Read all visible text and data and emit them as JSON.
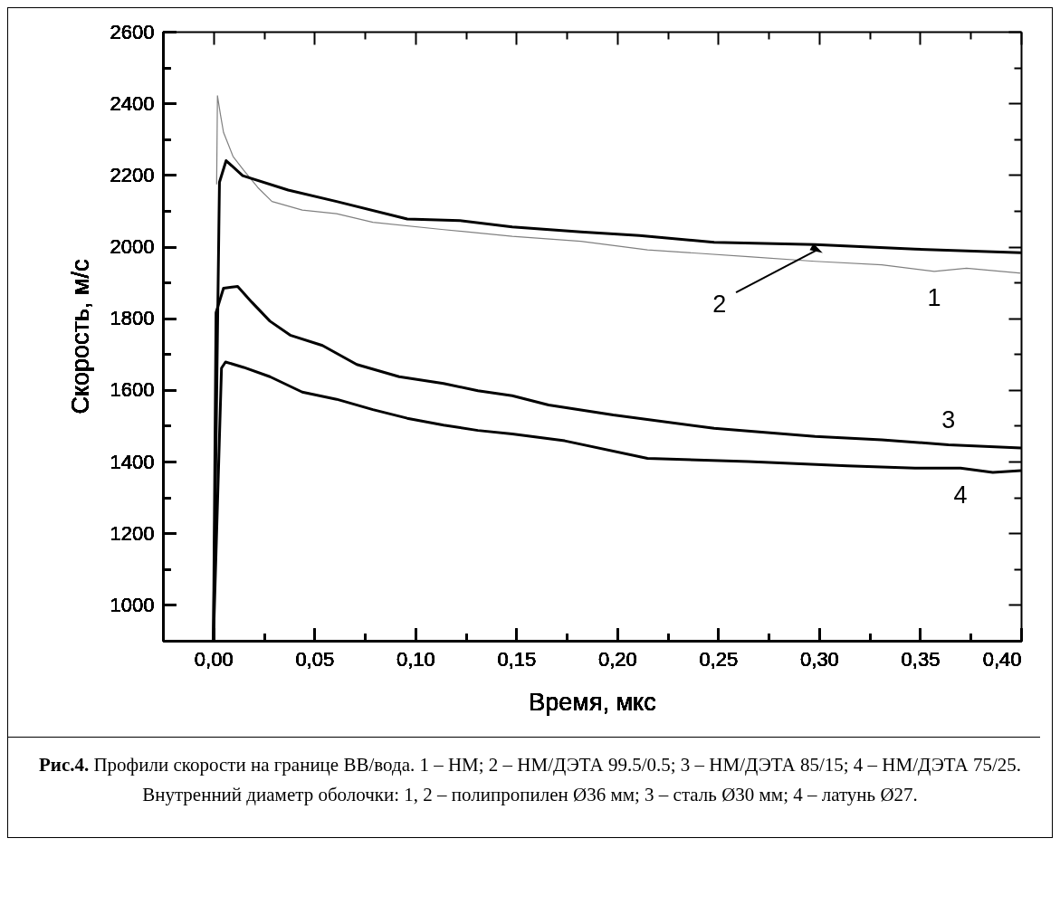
{
  "chart_data": {
    "type": "line",
    "xlabel": "Время, мкс",
    "ylabel": "Скорость, м/с",
    "xlim": [
      -0.025,
      0.4
    ],
    "ylim": [
      900,
      2600
    ],
    "xticks": [
      {
        "value": 0,
        "label": "0,00"
      },
      {
        "value": 0.05,
        "label": "0,05"
      },
      {
        "value": 0.1,
        "label": "0,10"
      },
      {
        "value": 0.15,
        "label": "0,15"
      },
      {
        "value": 0.2,
        "label": "0,20"
      },
      {
        "value": 0.25,
        "label": "0,25"
      },
      {
        "value": 0.3,
        "label": "0,30"
      },
      {
        "value": 0.35,
        "label": "0,35"
      },
      {
        "value": 0.4,
        "label": "0,40"
      },
      {
        "value": 0.025,
        "label": null
      },
      {
        "value": 0.075,
        "label": null
      },
      {
        "value": 0.125,
        "label": null
      },
      {
        "value": 0.175,
        "label": null
      },
      {
        "value": 0.225,
        "label": null
      },
      {
        "value": 0.275,
        "label": null
      },
      {
        "value": 0.325,
        "label": null
      },
      {
        "value": 0.375,
        "label": null
      }
    ],
    "yticks": [
      1000,
      1200,
      1400,
      1600,
      1800,
      2000,
      2200,
      2400,
      2600,
      {
        "value": 1100,
        "label": null
      },
      {
        "value": 1300,
        "label": null
      },
      {
        "value": 1500,
        "label": null
      },
      {
        "value": 1700,
        "label": null
      },
      {
        "value": 1900,
        "label": null
      },
      {
        "value": 2100,
        "label": null
      },
      {
        "value": 2300,
        "label": null
      },
      {
        "value": 2500,
        "label": null
      }
    ],
    "series": [
      {
        "color": "#808080",
        "x": [
          0.0016,
          0.002,
          0.0035,
          0.005,
          0.0097,
          0.015,
          0.022,
          0.029,
          0.044,
          0.061,
          0.079,
          0.113,
          0.148,
          0.182,
          0.215,
          0.265,
          0.298,
          0.331,
          0.357,
          0.373,
          0.4
        ],
        "values": [
          2174,
          2421,
          2368,
          2319,
          2252,
          2213,
          2165,
          2126,
          2102,
          2092,
          2068,
          2048,
          2029,
          2015,
          1991,
          1972,
          1959,
          1949,
          1931,
          1940,
          1926
        ]
      },
      {
        "color": "#000000",
        "x": [
          0,
          0.003,
          0.0063,
          0.0145,
          0.037,
          0.061,
          0.096,
          0.122,
          0.148,
          0.182,
          0.211,
          0.248,
          0.298,
          0.3475,
          0.4
        ],
        "values": [
          900,
          2180,
          2240,
          2198,
          2158,
          2126,
          2077,
          2073,
          2055,
          2041,
          2031,
          2012,
          2006,
          1993,
          1983
        ]
      },
      {
        "color": "#000000",
        "x": [
          0,
          0.0013,
          0.005,
          0.012,
          0.019,
          0.028,
          0.038,
          0.054,
          0.071,
          0.092,
          0.114,
          0.131,
          0.148,
          0.166,
          0.198,
          0.248,
          0.298,
          0.331,
          0.364,
          0.4
        ],
        "values": [
          900,
          1816,
          1884,
          1889,
          1845,
          1792,
          1753,
          1724,
          1671,
          1637,
          1618,
          1598,
          1584,
          1558,
          1530,
          1493,
          1470,
          1461,
          1447,
          1438
        ]
      },
      {
        "color": "#000000",
        "x": [
          0,
          0.004,
          0.006,
          0.015,
          0.028,
          0.044,
          0.061,
          0.079,
          0.096,
          0.114,
          0.131,
          0.148,
          0.174,
          0.215,
          0.265,
          0.314,
          0.3475,
          0.37,
          0.386,
          0.4
        ],
        "values": [
          900,
          1661,
          1678,
          1663,
          1637,
          1594,
          1574,
          1545,
          1521,
          1502,
          1487,
          1477,
          1458,
          1409,
          1400,
          1388,
          1382,
          1382,
          1370,
          1375
        ]
      }
    ],
    "annotations": [
      {
        "text": "1",
        "x": 0.357,
        "y": 1931
      },
      {
        "text": "2",
        "x": 0.299,
        "y": 1991
      },
      {
        "text": "3",
        "x": 0.364,
        "y": 1447
      },
      {
        "text": "4",
        "x": 0.37,
        "y": 1382
      },
      "Рис.4. Профили скорости на границе ВВ/вода. 1 – НМ; 2 – НМ/ДЭТА 99.5/0.5; 3 – НМ/ДЭТА 85/15; 4 – НМ/ДЭТА 75/25. Внутренний диаметр оболочки: 1, 2 – полипропилен Ø36 мм; 3 – сталь Ø30 мм; 4 – латунь Ø27."
    ]
  }
}
